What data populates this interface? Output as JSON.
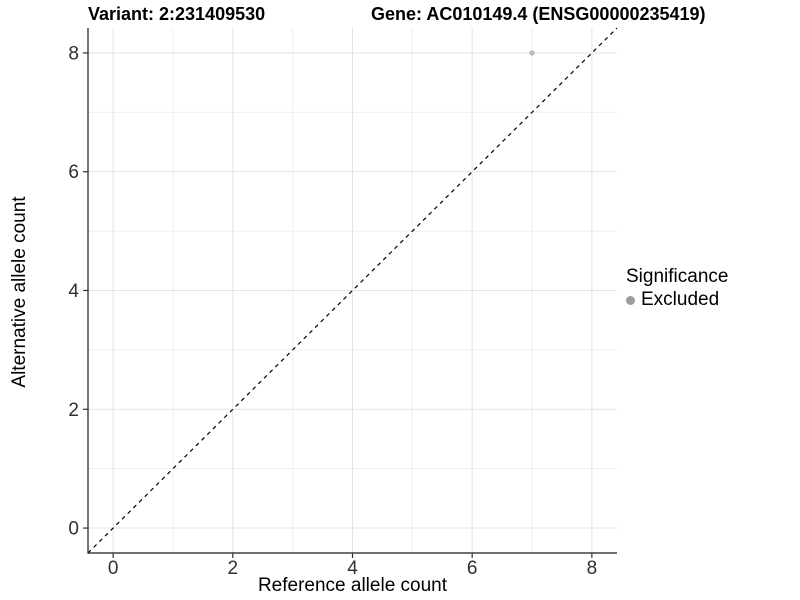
{
  "chart_data": {
    "type": "scatter",
    "titles": {
      "left": "Variant: 2:231409530",
      "right": "Gene: AC010149.4 (ENSG00000235419)"
    },
    "xlabel": "Reference allele count",
    "ylabel": "Alternative allele count",
    "xlim": [
      -0.42,
      8.42
    ],
    "ylim": [
      -0.42,
      8.42
    ],
    "xticks": [
      0,
      2,
      4,
      6,
      8
    ],
    "yticks": [
      0,
      2,
      4,
      6,
      8
    ],
    "xticks_minor": [
      1,
      3,
      5,
      7
    ],
    "yticks_minor": [
      1,
      3,
      5,
      7
    ],
    "grid": "major+minor",
    "identity_line": {
      "style": "dashed",
      "color": "#000000",
      "from": [
        -0.42,
        -0.42
      ],
      "to": [
        8.42,
        8.42
      ]
    },
    "series": [
      {
        "name": "Excluded",
        "color": "#b9bdbc",
        "marker": "circle",
        "marker_radius": 2.7,
        "points": [
          {
            "x": 7,
            "y": 8
          }
        ]
      }
    ],
    "legend": {
      "title": "Significance",
      "position": "right",
      "entries": [
        {
          "label": "Excluded",
          "color": "#9c9c9c"
        }
      ]
    },
    "panel_style": {
      "background": "#ffffff",
      "grid_major_color": "#e3e3e3",
      "grid_minor_color": "#efefef",
      "axis_line_color": "#1a1a1a",
      "tick_mark_color": "#333333",
      "tick_label_color": "#303030"
    }
  }
}
